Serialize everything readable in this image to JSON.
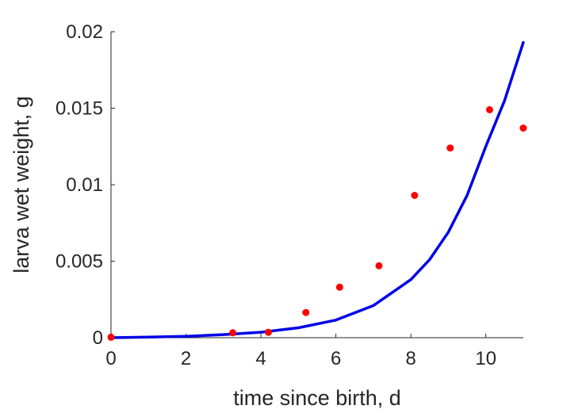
{
  "chart_data": {
    "type": "scatter",
    "title": "",
    "xlabel": "time since birth, d",
    "ylabel": "larva wet weight, g",
    "xlim": [
      0,
      11
    ],
    "ylim": [
      0,
      0.02
    ],
    "xticks": [
      0,
      2,
      4,
      6,
      8,
      10
    ],
    "xtick_labels": [
      "0",
      "2",
      "4",
      "6",
      "8",
      "10"
    ],
    "yticks": [
      0,
      0.005,
      0.01,
      0.015,
      0.02
    ],
    "ytick_labels": [
      "0",
      "0.005",
      "0.01",
      "0.015",
      "0.02"
    ],
    "grid": false,
    "legend": "none",
    "series": [
      {
        "kind": "points",
        "color": "#ff0000",
        "x": [
          0.0,
          3.25,
          4.2,
          5.2,
          6.1,
          7.15,
          8.1,
          9.05,
          10.1,
          11.0
        ],
        "y": [
          3e-05,
          0.00032,
          0.00035,
          0.00165,
          0.0033,
          0.0047,
          0.0093,
          0.0124,
          0.0149,
          0.0137
        ]
      },
      {
        "kind": "line",
        "color": "#0000e6",
        "x": [
          0,
          1,
          2,
          3,
          4,
          5,
          6,
          7,
          8,
          8.5,
          9,
          9.5,
          10,
          10.5,
          11
        ],
        "y": [
          0.0,
          4e-05,
          9e-05,
          0.0002,
          0.00036,
          0.00065,
          0.00115,
          0.0021,
          0.0038,
          0.0051,
          0.0069,
          0.0093,
          0.0125,
          0.0155,
          0.0193
        ]
      }
    ]
  }
}
